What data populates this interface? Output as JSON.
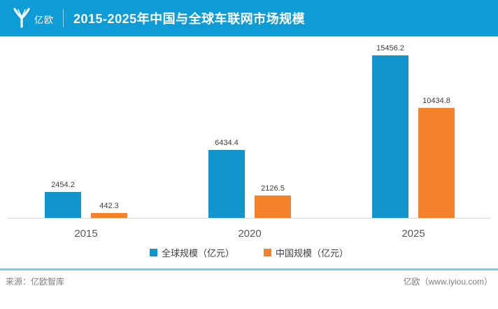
{
  "header": {
    "logo_text": "亿欧",
    "title": "2015-2025年中国与全球车联网市场规模"
  },
  "chart_data": {
    "type": "bar",
    "title": "2015-2025年中国与全球车联网市场规模",
    "categories": [
      "2015",
      "2020",
      "2025"
    ],
    "series": [
      {
        "name": "全球规模（亿元）",
        "color": "#1295CC",
        "values": [
          2454.2,
          6434.4,
          15456.2
        ]
      },
      {
        "name": "中国规模（亿元）",
        "color": "#F5822B",
        "values": [
          442.3,
          2126.5,
          10434.8
        ]
      }
    ],
    "value_labels": [
      [
        "2454.2",
        "6434.4",
        "15456.2"
      ],
      [
        "442.3",
        "2126.5",
        "10434.8"
      ]
    ],
    "xlabel": "",
    "ylabel": "",
    "ylim": [
      0,
      16000
    ],
    "grid": false,
    "legend_position": "bottom"
  },
  "footer": {
    "source": "来源：亿欧智库",
    "brand": "亿欧（www.iyiou.com）"
  },
  "colors": {
    "header_bg": "#0E9CD6",
    "bar_global": "#1295CC",
    "bar_china": "#F5822B",
    "axis_line": "#D9D9D9",
    "footer_divider": "#7ECBE8"
  }
}
